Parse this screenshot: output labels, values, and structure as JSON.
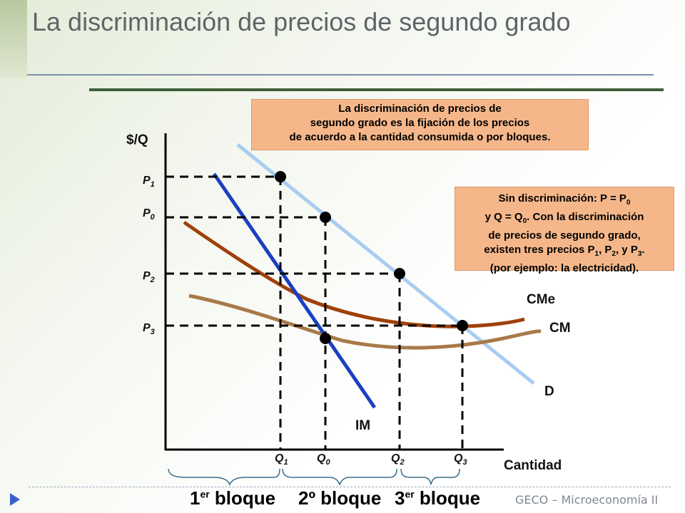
{
  "slide": {
    "title": "La discriminación de precios de segundo grado",
    "footer": "GECO – Microeconomía II"
  },
  "box1": {
    "line1": "La discriminación de precios de",
    "line2": "segundo grado es la fijación de los precios",
    "line3": "de acuerdo a la cantidad consumida o por bloques."
  },
  "box2": {
    "l1a": "Sin discriminación: P = P",
    "l1s": "0",
    "l2a": "y Q = Q",
    "l2s": "0",
    "l2b": ". Con la discriminación",
    "l3": "de precios de segundo grado,",
    "l4a": "existen tres precios P",
    "l4s1": "1",
    "l4b": ", P",
    "l4s2": "2",
    "l4c": ", y P",
    "l4s3": "3",
    "l4d": ".",
    "l5": "(por ejemplo: la electricidad)."
  },
  "axes": {
    "y_label": "$/Q",
    "x_label": "Cantidad"
  },
  "price_labels": [
    {
      "main": "P",
      "sub": "1"
    },
    {
      "main": "P",
      "sub": "0"
    },
    {
      "main": "P",
      "sub": "2"
    },
    {
      "main": "P",
      "sub": "3"
    }
  ],
  "quantity_labels": [
    {
      "main": "Q",
      "sub": "1"
    },
    {
      "main": "Q",
      "sub": "0"
    },
    {
      "main": "Q",
      "sub": "2"
    },
    {
      "main": "Q",
      "sub": "3"
    }
  ],
  "curves": {
    "demand": "D",
    "marginal_revenue": "IM",
    "average_cost": "CMe",
    "marginal_cost": "CM"
  },
  "blocks": {
    "b1_main": "1",
    "b1_sup": "er",
    "b1_rest": " bloque",
    "b2": "2º bloque",
    "b3_main": "3",
    "b3_sup": "er",
    "b3_rest": " bloque"
  },
  "colors": {
    "demand": "#a8cdf0",
    "marginal_revenue": "#1a3fc0",
    "average_cost": "#a0400c",
    "marginal_cost": "#a87a48",
    "box_fill": "#f5b78a"
  }
}
